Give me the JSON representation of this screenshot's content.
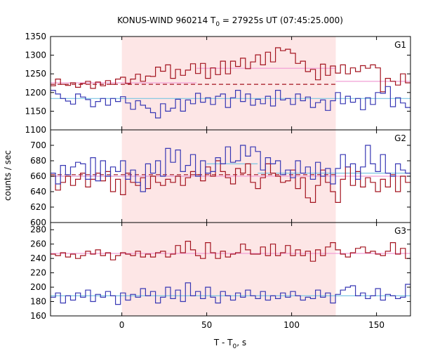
{
  "chart_data": {
    "type": "line",
    "title_main": "KONUS-WIND 960214 T",
    "title_sub": "0",
    "title_tail": " = 27925s UT (07:45:25.000)",
    "xlabel": "T - T",
    "xlabel_sub": "0",
    "xlabel_tail": ", s",
    "ylabel": "counts / sec",
    "xlim": [
      -42,
      170
    ],
    "xticks": [
      0,
      50,
      100,
      150
    ],
    "highlight": {
      "x0": 0,
      "x1": 126,
      "color": "#fde6e6"
    },
    "bin_x": {
      "start": -42,
      "step": 2.944,
      "count": 72
    },
    "colors": {
      "red": "#a3131f",
      "blue": "#3737b4",
      "red_level": "#f29fd6",
      "blue_level": "#7cc6e2",
      "highlight": "#fde6e6"
    },
    "panels": [
      {
        "label": "G1",
        "ylim": [
          1100,
          1350
        ],
        "yticks": [
          1100,
          1150,
          1200,
          1250,
          1300,
          1350
        ],
        "series": [
          {
            "color_key": "red",
            "values": [
              1218,
              1236,
              1222,
              1219,
              1226,
              1214,
              1224,
              1230,
              1211,
              1228,
              1218,
              1232,
              1222,
              1236,
              1241,
              1224,
              1236,
              1249,
              1230,
              1244,
              1243,
              1268,
              1257,
              1274,
              1238,
              1262,
              1246,
              1260,
              1277,
              1251,
              1278,
              1238,
              1266,
              1248,
              1284,
              1250,
              1284,
              1270,
              1292,
              1264,
              1282,
              1301,
              1274,
              1308,
              1282,
              1320,
              1312,
              1316,
              1305,
              1278,
              1284,
              1256,
              1262,
              1234,
              1276,
              1246,
              1271,
              1252,
              1274,
              1250,
              1266,
              1256,
              1272,
              1265,
              1274,
              1266,
              1202,
              1238,
              1230,
              1220,
              1250,
              1226
            ]
          },
          {
            "color_key": "blue",
            "values": [
              1206,
              1196,
              1184,
              1177,
              1169,
              1196,
              1188,
              1181,
              1162,
              1176,
              1184,
              1166,
              1184,
              1176,
              1189,
              1172,
              1155,
              1178,
              1166,
              1158,
              1146,
              1132,
              1170,
              1150,
              1158,
              1182,
              1150,
              1180,
              1170,
              1198,
              1174,
              1186,
              1168,
              1190,
              1196,
              1160,
              1186,
              1206,
              1176,
              1196,
              1166,
              1182,
              1170,
              1190,
              1164,
              1206,
              1180,
              1184,
              1168,
              1196,
              1178,
              1188,
              1160,
              1173,
              1180,
              1152,
              1178,
              1200,
              1170,
              1190,
              1174,
              1184,
              1154,
              1186,
              1168,
              1200,
              1198,
              1216,
              1162,
              1186,
              1172,
              1160
            ]
          }
        ],
        "levels": [
          {
            "color_key": "red",
            "dashed": true,
            "y": 1222,
            "x0": -42,
            "x1": 126
          },
          {
            "color_key": "red_level",
            "dashed": false,
            "y": 1226,
            "x0": -42,
            "x1": 44
          },
          {
            "color_key": "red_level",
            "dashed": false,
            "y": 1265,
            "x0": 44,
            "x1": 126
          },
          {
            "color_key": "red_level",
            "dashed": false,
            "y": 1230,
            "x0": 126,
            "x1": 170
          },
          {
            "color_key": "blue_level",
            "dashed": false,
            "y": 1184,
            "x0": -42,
            "x1": 170
          }
        ]
      },
      {
        "label": "G2",
        "ylim": [
          600,
          720
        ],
        "yticks": [
          600,
          620,
          640,
          660,
          680,
          700
        ],
        "series": [
          {
            "color_key": "red",
            "values": [
              660,
              642,
              652,
              660,
              648,
              656,
              664,
              646,
              656,
              664,
              654,
              666,
              640,
              656,
              636,
              664,
              652,
              648,
              658,
              644,
              660,
              652,
              648,
              656,
              652,
              660,
              648,
              658,
              666,
              662,
              654,
              672,
              660,
              680,
              666,
              658,
              650,
              670,
              664,
              676,
              652,
              644,
              658,
              676,
              664,
              660,
              652,
              654,
              668,
              644,
              658,
              632,
              626,
              648,
              668,
              652,
              640,
              626,
              656,
              672,
              648,
              666,
              646,
              658,
              652,
              640,
              656,
              646,
              662,
              640,
              660,
              652
            ]
          },
          {
            "color_key": "blue",
            "values": [
              664,
              650,
              674,
              662,
              672,
              678,
              676,
              656,
              684,
              654,
              680,
              660,
              672,
              666,
              680,
              656,
              668,
              652,
              640,
              676,
              664,
              680,
              660,
              696,
              678,
              694,
              666,
              674,
              688,
              660,
              680,
              664,
              666,
              684,
              676,
              698,
              678,
              680,
              700,
              686,
              698,
              692,
              668,
              684,
              676,
              680,
              662,
              668,
              658,
              680,
              664,
              672,
              656,
              678,
              660,
              670,
              650,
              670,
              688,
              672,
              676,
              656,
              672,
              700,
              676,
              666,
              688,
              664,
              660,
              676,
              668,
              664
            ]
          }
        ],
        "levels": [
          {
            "color_key": "red",
            "dashed": true,
            "y": 662,
            "x0": -42,
            "x1": 126
          },
          {
            "color_key": "blue_level",
            "dashed": false,
            "y": 660,
            "x0": -42,
            "x1": 50
          },
          {
            "color_key": "blue_level",
            "dashed": false,
            "y": 676,
            "x0": 50,
            "x1": 80
          },
          {
            "color_key": "blue_level",
            "dashed": false,
            "y": 664,
            "x0": 80,
            "x1": 170
          },
          {
            "color_key": "red_level",
            "dashed": false,
            "y": 660,
            "x0": -42,
            "x1": 170
          }
        ]
      },
      {
        "label": "G3",
        "ylim": [
          160,
          290
        ],
        "yticks": [
          160,
          180,
          200,
          220,
          240,
          260,
          280
        ],
        "series": [
          {
            "color_key": "red",
            "values": [
              246,
              244,
              248,
              242,
              246,
              240,
              244,
              250,
              246,
              252,
              244,
              248,
              238,
              244,
              248,
              246,
              244,
              250,
              242,
              246,
              242,
              248,
              250,
              242,
              246,
              258,
              248,
              264,
              252,
              244,
              240,
              262,
              248,
              240,
              250,
              242,
              246,
              248,
              260,
              252,
              246,
              246,
              256,
              244,
              260,
              244,
              248,
              258,
              244,
              252,
              244,
              250,
              236,
              252,
              244,
              256,
              262,
              252,
              246,
              242,
              248,
              254,
              256,
              248,
              250,
              246,
              244,
              250,
              262,
              246,
              254,
              240
            ]
          },
          {
            "color_key": "blue",
            "values": [
              186,
              192,
              178,
              188,
              182,
              192,
              186,
              196,
              180,
              190,
              186,
              194,
              188,
              176,
              192,
              182,
              190,
              186,
              198,
              188,
              194,
              178,
              186,
              200,
              184,
              196,
              180,
              206,
              188,
              194,
              184,
              200,
              186,
              178,
              194,
              188,
              182,
              192,
              186,
              196,
              188,
              184,
              194,
              182,
              188,
              184,
              192,
              186,
              194,
              188,
              182,
              186,
              184,
              196,
              186,
              192,
              178,
              190,
              196,
              200,
              202,
              188,
              192,
              184,
              188,
              198,
              182,
              190,
              188,
              184,
              186,
              204
            ]
          }
        ],
        "levels": [
          {
            "color_key": "red_level",
            "dashed": false,
            "y": 247,
            "x0": -42,
            "x1": 170
          },
          {
            "color_key": "blue_level",
            "dashed": false,
            "y": 188,
            "x0": -42,
            "x1": 170
          }
        ]
      }
    ]
  }
}
